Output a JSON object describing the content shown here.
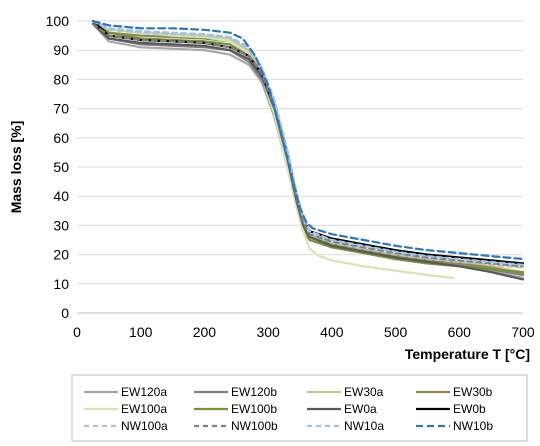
{
  "chart_data": {
    "type": "line",
    "title": "",
    "xlabel": "Temperature T [°C]",
    "ylabel": "Mass loss [%]",
    "xlim": [
      0,
      700
    ],
    "ylim": [
      0,
      100
    ],
    "xticks": [
      0,
      100,
      200,
      300,
      400,
      500,
      600,
      700
    ],
    "yticks": [
      0,
      10,
      20,
      30,
      40,
      50,
      60,
      70,
      80,
      90,
      100
    ],
    "grid": "horizontal",
    "legend_position": "bottom",
    "series": [
      {
        "name": "EW120a",
        "color": "#a6a6a6",
        "dash": "solid",
        "points": [
          [
            25,
            99
          ],
          [
            50,
            93
          ],
          [
            100,
            91
          ],
          [
            150,
            90.5
          ],
          [
            200,
            90
          ],
          [
            240,
            88.5
          ],
          [
            270,
            85
          ],
          [
            290,
            79
          ],
          [
            310,
            67
          ],
          [
            330,
            50
          ],
          [
            345,
            36
          ],
          [
            355,
            28
          ],
          [
            365,
            25
          ],
          [
            400,
            22.5
          ],
          [
            450,
            20.5
          ],
          [
            500,
            18.5
          ],
          [
            550,
            17
          ],
          [
            600,
            16
          ],
          [
            650,
            14.5
          ],
          [
            700,
            12
          ]
        ]
      },
      {
        "name": "EW120b",
        "color": "#808080",
        "dash": "solid",
        "points": [
          [
            25,
            99
          ],
          [
            50,
            94
          ],
          [
            100,
            92
          ],
          [
            150,
            91.5
          ],
          [
            200,
            91
          ],
          [
            240,
            90
          ],
          [
            270,
            86
          ],
          [
            290,
            80
          ],
          [
            310,
            69
          ],
          [
            330,
            52
          ],
          [
            345,
            38
          ],
          [
            355,
            30
          ],
          [
            365,
            26
          ],
          [
            400,
            23.5
          ],
          [
            450,
            21
          ],
          [
            500,
            19
          ],
          [
            550,
            17.5
          ],
          [
            600,
            16.5
          ],
          [
            650,
            15
          ],
          [
            700,
            13
          ]
        ]
      },
      {
        "name": "EW30a",
        "color": "#c4c994",
        "dash": "solid",
        "points": [
          [
            25,
            100
          ],
          [
            50,
            97
          ],
          [
            100,
            96
          ],
          [
            150,
            95.5
          ],
          [
            200,
            95
          ],
          [
            240,
            94
          ],
          [
            270,
            90
          ],
          [
            290,
            83
          ],
          [
            310,
            72
          ],
          [
            330,
            55
          ],
          [
            345,
            40
          ],
          [
            355,
            32
          ],
          [
            365,
            27
          ],
          [
            400,
            24
          ],
          [
            450,
            22
          ],
          [
            500,
            20
          ],
          [
            550,
            18.5
          ],
          [
            600,
            17.5
          ],
          [
            650,
            16
          ],
          [
            700,
            14
          ]
        ]
      },
      {
        "name": "EW30b",
        "color": "#8c8a52",
        "dash": "solid",
        "points": [
          [
            25,
            100
          ],
          [
            50,
            96
          ],
          [
            100,
            95
          ],
          [
            150,
            94.5
          ],
          [
            200,
            94
          ],
          [
            240,
            93
          ],
          [
            270,
            89
          ],
          [
            290,
            82
          ],
          [
            310,
            71
          ],
          [
            330,
            54
          ],
          [
            345,
            39
          ],
          [
            355,
            31
          ],
          [
            365,
            26
          ],
          [
            400,
            23.5
          ],
          [
            450,
            21.5
          ],
          [
            500,
            19.5
          ],
          [
            550,
            18
          ],
          [
            600,
            17
          ],
          [
            650,
            15.5
          ],
          [
            700,
            13.5
          ]
        ]
      },
      {
        "name": "EW100a",
        "color": "#d6e3b4",
        "dash": "solid",
        "points": [
          [
            25,
            100
          ],
          [
            50,
            97
          ],
          [
            100,
            96
          ],
          [
            150,
            95
          ],
          [
            200,
            94.5
          ],
          [
            240,
            93
          ],
          [
            270,
            89
          ],
          [
            290,
            81
          ],
          [
            310,
            68
          ],
          [
            330,
            50
          ],
          [
            345,
            36
          ],
          [
            355,
            28
          ],
          [
            365,
            22
          ],
          [
            380,
            19.5
          ],
          [
            400,
            18
          ],
          [
            450,
            16
          ],
          [
            500,
            14.5
          ],
          [
            550,
            13
          ],
          [
            590,
            12
          ]
        ]
      },
      {
        "name": "EW100b",
        "color": "#76923c",
        "dash": "solid",
        "points": [
          [
            25,
            100
          ],
          [
            50,
            96
          ],
          [
            100,
            94
          ],
          [
            150,
            93.5
          ],
          [
            200,
            93
          ],
          [
            240,
            92
          ],
          [
            270,
            88
          ],
          [
            290,
            81
          ],
          [
            310,
            70
          ],
          [
            330,
            53
          ],
          [
            345,
            38
          ],
          [
            355,
            30
          ],
          [
            365,
            25
          ],
          [
            400,
            22.5
          ],
          [
            450,
            20.5
          ],
          [
            500,
            18.5
          ],
          [
            550,
            17
          ],
          [
            600,
            16
          ],
          [
            650,
            15
          ],
          [
            700,
            14
          ]
        ]
      },
      {
        "name": "EW0a",
        "color": "#595959",
        "dash": "solid",
        "points": [
          [
            25,
            99
          ],
          [
            50,
            94
          ],
          [
            100,
            92.5
          ],
          [
            150,
            92
          ],
          [
            200,
            91.5
          ],
          [
            240,
            90
          ],
          [
            270,
            87
          ],
          [
            290,
            81
          ],
          [
            310,
            70
          ],
          [
            330,
            53
          ],
          [
            345,
            38
          ],
          [
            355,
            30
          ],
          [
            365,
            26
          ],
          [
            400,
            23
          ],
          [
            450,
            21
          ],
          [
            500,
            19
          ],
          [
            550,
            17.5
          ],
          [
            600,
            16
          ],
          [
            650,
            14
          ],
          [
            700,
            11.5
          ]
        ]
      },
      {
        "name": "EW0b",
        "color": "#000000",
        "dash": "solid",
        "points": [
          [
            25,
            100
          ],
          [
            50,
            95
          ],
          [
            100,
            93.5
          ],
          [
            150,
            93
          ],
          [
            200,
            92.5
          ],
          [
            240,
            91
          ],
          [
            270,
            88
          ],
          [
            290,
            82
          ],
          [
            310,
            71
          ],
          [
            330,
            55
          ],
          [
            345,
            40
          ],
          [
            355,
            32
          ],
          [
            365,
            28
          ],
          [
            400,
            25.5
          ],
          [
            450,
            23.5
          ],
          [
            500,
            21.5
          ],
          [
            550,
            20
          ],
          [
            600,
            19
          ],
          [
            650,
            18
          ],
          [
            700,
            17
          ]
        ]
      },
      {
        "name": "NW100a",
        "color": "#bfbfbf",
        "dash": "5,4",
        "points": [
          [
            25,
            100
          ],
          [
            50,
            97
          ],
          [
            100,
            96
          ],
          [
            150,
            95.5
          ],
          [
            200,
            95
          ],
          [
            240,
            94
          ],
          [
            270,
            90
          ],
          [
            290,
            83
          ],
          [
            310,
            72
          ],
          [
            330,
            55
          ],
          [
            345,
            40
          ],
          [
            355,
            32
          ],
          [
            365,
            27
          ],
          [
            400,
            24
          ],
          [
            450,
            22
          ],
          [
            500,
            20
          ],
          [
            550,
            18.5
          ],
          [
            600,
            17.5
          ],
          [
            650,
            16.5
          ],
          [
            700,
            15.5
          ]
        ]
      },
      {
        "name": "NW100b",
        "color": "#7f7f7f",
        "dash": "5,4",
        "points": [
          [
            25,
            99
          ],
          [
            50,
            95
          ],
          [
            100,
            93.5
          ],
          [
            150,
            93
          ],
          [
            200,
            92.5
          ],
          [
            240,
            91
          ],
          [
            270,
            88
          ],
          [
            290,
            82
          ],
          [
            310,
            71
          ],
          [
            330,
            54
          ],
          [
            345,
            39
          ],
          [
            355,
            31
          ],
          [
            365,
            27
          ],
          [
            400,
            24.5
          ],
          [
            450,
            22.5
          ],
          [
            500,
            20.5
          ],
          [
            550,
            19
          ],
          [
            600,
            18
          ],
          [
            650,
            17
          ],
          [
            700,
            16
          ]
        ]
      },
      {
        "name": "NW10a",
        "color": "#9dc3e6",
        "dash": "5,4",
        "points": [
          [
            25,
            100
          ],
          [
            50,
            97.5
          ],
          [
            100,
            96.5
          ],
          [
            150,
            96
          ],
          [
            200,
            95.5
          ],
          [
            240,
            94.5
          ],
          [
            270,
            91
          ],
          [
            290,
            84
          ],
          [
            310,
            73
          ],
          [
            330,
            56
          ],
          [
            345,
            41
          ],
          [
            355,
            33
          ],
          [
            365,
            28
          ],
          [
            400,
            25
          ],
          [
            450,
            23
          ],
          [
            500,
            21
          ],
          [
            550,
            19.5
          ],
          [
            600,
            18.5
          ],
          [
            650,
            17.5
          ],
          [
            700,
            16.5
          ]
        ]
      },
      {
        "name": "NW10b",
        "color": "#2e75b6",
        "dash": "7,4",
        "points": [
          [
            25,
            100
          ],
          [
            50,
            98.5
          ],
          [
            100,
            97.5
          ],
          [
            150,
            97.5
          ],
          [
            200,
            97
          ],
          [
            240,
            96
          ],
          [
            260,
            94
          ],
          [
            280,
            88
          ],
          [
            300,
            78
          ],
          [
            320,
            62
          ],
          [
            340,
            44
          ],
          [
            350,
            36
          ],
          [
            360,
            31
          ],
          [
            370,
            29
          ],
          [
            400,
            27
          ],
          [
            450,
            25
          ],
          [
            500,
            23
          ],
          [
            550,
            21.5
          ],
          [
            600,
            20.5
          ],
          [
            650,
            19.5
          ],
          [
            700,
            18.5
          ]
        ]
      }
    ]
  }
}
